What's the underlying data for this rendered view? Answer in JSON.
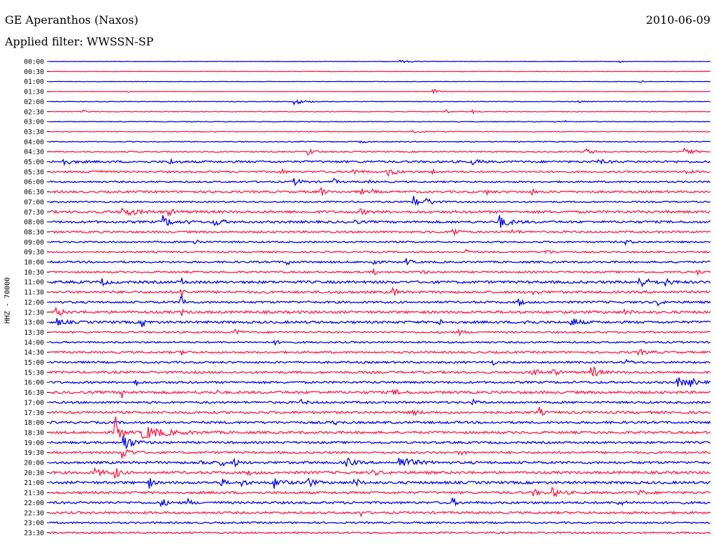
{
  "header": {
    "title": "GE Aperanthos (Naxos)",
    "date": "2010-06-09",
    "filter": "Applied filter: WWSSN-SP"
  },
  "colors": {
    "even_trace": "#0000ee",
    "odd_trace": "#ff1744",
    "background": "#ffffff"
  },
  "chart_data": {
    "type": "line",
    "title": "GE Aperanthos (Naxos)",
    "ylabel": "HHZ - 70000",
    "xlabel": "",
    "grid": false,
    "row_minutes": 30,
    "row_times": [
      "00:00",
      "00:30",
      "01:00",
      "01:30",
      "02:00",
      "02:30",
      "03:00",
      "03:30",
      "04:00",
      "04:30",
      "05:00",
      "05:30",
      "06:00",
      "06:30",
      "07:00",
      "07:30",
      "08:00",
      "08:30",
      "09:00",
      "09:30",
      "10:00",
      "10:30",
      "11:00",
      "11:30",
      "12:00",
      "12:30",
      "13:00",
      "13:30",
      "14:00",
      "14:30",
      "15:00",
      "15:30",
      "16:00",
      "16:30",
      "17:00",
      "17:30",
      "18:00",
      "18:30",
      "19:00",
      "19:30",
      "20:00",
      "20:30",
      "21:00",
      "21:30",
      "22:00",
      "22:30",
      "23:00",
      "23:30"
    ],
    "series": [
      {
        "row": 0,
        "noise": 0.3,
        "events": [
          [
            0.53,
            1.5,
            0.02
          ],
          [
            0.86,
            4.0,
            0.003
          ]
        ]
      },
      {
        "row": 1,
        "noise": 0.3,
        "events": []
      },
      {
        "row": 2,
        "noise": 0.3,
        "events": [
          [
            0.89,
            5.0,
            0.003
          ]
        ]
      },
      {
        "row": 3,
        "noise": 0.3,
        "events": [
          [
            0.58,
            3.5,
            0.008
          ],
          [
            0.12,
            1.5,
            0.005
          ]
        ]
      },
      {
        "row": 4,
        "noise": 0.4,
        "events": [
          [
            0.37,
            4.0,
            0.015
          ],
          [
            0.8,
            2.5,
            0.004
          ]
        ]
      },
      {
        "row": 5,
        "noise": 0.5,
        "events": [
          [
            0.6,
            3.0,
            0.004
          ],
          [
            0.64,
            3.0,
            0.004
          ],
          [
            0.05,
            2.0,
            0.01
          ]
        ]
      },
      {
        "row": 6,
        "noise": 0.5,
        "events": [
          [
            0.78,
            2.0,
            0.004
          ]
        ]
      },
      {
        "row": 7,
        "noise": 0.5,
        "events": [
          [
            0.55,
            1.5,
            0.01
          ]
        ]
      },
      {
        "row": 8,
        "noise": 0.6,
        "events": [
          [
            0.47,
            1.5,
            0.01
          ]
        ]
      },
      {
        "row": 9,
        "noise": 0.9,
        "events": [
          [
            0.39,
            5.5,
            0.008
          ],
          [
            0.81,
            4.0,
            0.01
          ],
          [
            0.96,
            6.0,
            0.01
          ]
        ]
      },
      {
        "row": 10,
        "noise": 1.5,
        "events": [
          [
            0.02,
            4.5,
            0.01
          ],
          [
            0.18,
            4.0,
            0.008
          ],
          [
            0.64,
            3.5,
            0.008
          ],
          [
            0.83,
            2.5,
            0.01
          ]
        ]
      },
      {
        "row": 11,
        "noise": 1.3,
        "events": [
          [
            0.06,
            3.5,
            0.012
          ],
          [
            0.35,
            5.0,
            0.004
          ],
          [
            0.46,
            4.0,
            0.008
          ],
          [
            0.51,
            6.0,
            0.012
          ],
          [
            0.58,
            4.0,
            0.004
          ],
          [
            0.96,
            3.0,
            0.008
          ]
        ]
      },
      {
        "row": 12,
        "noise": 1.2,
        "events": [
          [
            0.37,
            4.5,
            0.01
          ],
          [
            0.43,
            6.0,
            0.003
          ],
          [
            0.48,
            3.0,
            0.004
          ]
        ]
      },
      {
        "row": 13,
        "noise": 1.5,
        "events": [
          [
            0.25,
            6.0,
            0.003
          ],
          [
            0.41,
            8.0,
            0.004
          ],
          [
            0.47,
            6.0,
            0.004
          ],
          [
            0.49,
            4.0,
            0.003
          ],
          [
            0.66,
            3.0,
            0.006
          ],
          [
            0.73,
            4.0,
            0.004
          ]
        ]
      },
      {
        "row": 14,
        "noise": 1.0,
        "events": [
          [
            0.55,
            9.0,
            0.008
          ],
          [
            0.57,
            5.0,
            0.01
          ]
        ]
      },
      {
        "row": 15,
        "noise": 1.8,
        "events": [
          [
            0.11,
            7.0,
            0.015
          ],
          [
            0.18,
            4.0,
            0.008
          ],
          [
            0.47,
            3.0,
            0.01
          ]
        ]
      },
      {
        "row": 16,
        "noise": 1.6,
        "events": [
          [
            0.17,
            10.0,
            0.01
          ],
          [
            0.21,
            6.0,
            0.003
          ],
          [
            0.25,
            7.0,
            0.008
          ],
          [
            0.46,
            3.0,
            0.006
          ],
          [
            0.68,
            9.0,
            0.012
          ]
        ]
      },
      {
        "row": 17,
        "noise": 1.4,
        "events": [
          [
            0.61,
            7.0,
            0.006
          ],
          [
            0.7,
            3.0,
            0.008
          ]
        ]
      },
      {
        "row": 18,
        "noise": 1.2,
        "events": [
          [
            0.22,
            7.0,
            0.004
          ],
          [
            0.87,
            3.0,
            0.008
          ]
        ]
      },
      {
        "row": 19,
        "noise": 1.2,
        "events": [
          [
            0.63,
            3.0,
            0.005
          ],
          [
            0.75,
            3.0,
            0.008
          ]
        ]
      },
      {
        "row": 20,
        "noise": 1.3,
        "events": [
          [
            0.36,
            6.0,
            0.003
          ],
          [
            0.49,
            8.0,
            0.004
          ],
          [
            0.54,
            5.0,
            0.005
          ]
        ]
      },
      {
        "row": 21,
        "noise": 1.3,
        "events": [
          [
            0.49,
            6.0,
            0.003
          ],
          [
            0.56,
            3.0,
            0.008
          ],
          [
            0.98,
            3.0,
            0.005
          ]
        ]
      },
      {
        "row": 22,
        "noise": 1.8,
        "events": [
          [
            0.08,
            5.0,
            0.006
          ],
          [
            0.2,
            5.0,
            0.004
          ],
          [
            0.89,
            9.0,
            0.012
          ],
          [
            0.93,
            5.0,
            0.008
          ]
        ]
      },
      {
        "row": 23,
        "noise": 1.7,
        "events": [
          [
            0.2,
            9.0,
            0.003
          ],
          [
            0.52,
            7.0,
            0.005
          ],
          [
            0.73,
            4.0,
            0.006
          ]
        ]
      },
      {
        "row": 24,
        "noise": 1.5,
        "events": [
          [
            0.2,
            14.0,
            0.003
          ],
          [
            0.71,
            7.0,
            0.004
          ],
          [
            0.92,
            5.0,
            0.004
          ]
        ]
      },
      {
        "row": 25,
        "noise": 1.8,
        "events": [
          [
            0.01,
            6.0,
            0.008
          ],
          [
            0.2,
            4.0,
            0.003
          ],
          [
            0.87,
            3.0,
            0.008
          ]
        ]
      },
      {
        "row": 26,
        "noise": 1.7,
        "events": [
          [
            0.01,
            5.0,
            0.01
          ],
          [
            0.14,
            6.0,
            0.005
          ],
          [
            0.59,
            3.5,
            0.005
          ],
          [
            0.72,
            4.0,
            0.006
          ],
          [
            0.79,
            8.0,
            0.008
          ]
        ]
      },
      {
        "row": 27,
        "noise": 1.3,
        "events": [
          [
            0.28,
            3.0,
            0.008
          ],
          [
            0.62,
            3.0,
            0.006
          ]
        ]
      },
      {
        "row": 28,
        "noise": 1.2,
        "events": [
          [
            0.34,
            3.0,
            0.006
          ]
        ]
      },
      {
        "row": 29,
        "noise": 1.4,
        "events": [
          [
            0.89,
            4.0,
            0.012
          ],
          [
            0.2,
            3.0,
            0.006
          ]
        ]
      },
      {
        "row": 30,
        "noise": 1.4,
        "events": [
          [
            0.67,
            4.0,
            0.003
          ],
          [
            0.87,
            3.0,
            0.01
          ]
        ]
      },
      {
        "row": 31,
        "noise": 1.6,
        "events": [
          [
            0.73,
            9.0,
            0.006
          ],
          [
            0.76,
            6.0,
            0.006
          ],
          [
            0.82,
            9.0,
            0.008
          ]
        ]
      },
      {
        "row": 32,
        "noise": 1.5,
        "events": [
          [
            0.13,
            5.0,
            0.004
          ],
          [
            0.95,
            6.0,
            0.015
          ],
          [
            0.97,
            5.0,
            0.005
          ]
        ]
      },
      {
        "row": 33,
        "noise": 1.8,
        "events": [
          [
            0.11,
            8.0,
            0.003
          ],
          [
            0.25,
            6.0,
            0.003
          ],
          [
            0.52,
            3.0,
            0.01
          ]
        ]
      },
      {
        "row": 34,
        "noise": 1.5,
        "events": [
          [
            0.38,
            3.0,
            0.008
          ],
          [
            0.64,
            3.0,
            0.006
          ]
        ]
      },
      {
        "row": 35,
        "noise": 1.7,
        "events": [
          [
            0.74,
            8.0,
            0.004
          ],
          [
            0.55,
            3.0,
            0.008
          ]
        ]
      },
      {
        "row": 36,
        "noise": 1.6,
        "events": [
          [
            0.43,
            3.0,
            0.006
          ]
        ]
      },
      {
        "row": 37,
        "noise": 1.7,
        "events": [
          [
            0.1,
            22.0,
            0.007
          ],
          [
            0.14,
            10.0,
            0.03
          ]
        ]
      },
      {
        "row": 38,
        "noise": 1.5,
        "events": [
          [
            0.11,
            14.0,
            0.012
          ]
        ]
      },
      {
        "row": 39,
        "noise": 1.5,
        "events": [
          [
            0.11,
            9.0,
            0.01
          ],
          [
            0.62,
            3.0,
            0.006
          ]
        ]
      },
      {
        "row": 40,
        "noise": 1.7,
        "events": [
          [
            0.23,
            6.0,
            0.006
          ],
          [
            0.26,
            7.0,
            0.005
          ],
          [
            0.28,
            6.0,
            0.004
          ],
          [
            0.45,
            7.0,
            0.008
          ],
          [
            0.53,
            8.0,
            0.018
          ]
        ]
      },
      {
        "row": 41,
        "noise": 1.8,
        "events": [
          [
            0.07,
            6.0,
            0.01
          ],
          [
            0.1,
            10.0,
            0.004
          ],
          [
            0.3,
            3.0,
            0.006
          ],
          [
            0.49,
            3.0,
            0.008
          ]
        ]
      },
      {
        "row": 42,
        "noise": 1.8,
        "events": [
          [
            0.15,
            9.0,
            0.004
          ],
          [
            0.26,
            6.0,
            0.004
          ],
          [
            0.29,
            5.0,
            0.006
          ],
          [
            0.34,
            8.0,
            0.01
          ],
          [
            0.39,
            7.0,
            0.008
          ],
          [
            0.46,
            8.0,
            0.006
          ]
        ]
      },
      {
        "row": 43,
        "noise": 1.7,
        "events": [
          [
            0.73,
            5.0,
            0.008
          ],
          [
            0.76,
            6.0,
            0.01
          ],
          [
            0.89,
            5.0,
            0.006
          ]
        ]
      },
      {
        "row": 44,
        "noise": 1.6,
        "events": [
          [
            0.17,
            6.0,
            0.006
          ],
          [
            0.21,
            7.0,
            0.003
          ],
          [
            0.61,
            7.0,
            0.004
          ],
          [
            0.86,
            5.0,
            0.006
          ]
        ]
      },
      {
        "row": 45,
        "noise": 1.6,
        "events": [
          [
            0.47,
            6.0,
            0.003
          ]
        ]
      },
      {
        "row": 46,
        "noise": 1.2,
        "events": []
      },
      {
        "row": 47,
        "noise": 1.2,
        "events": []
      }
    ]
  }
}
